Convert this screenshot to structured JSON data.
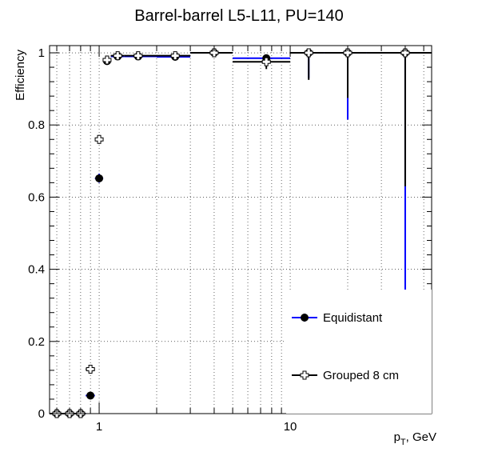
{
  "chart_data": {
    "type": "scatter",
    "title": "Barrel-barrel L5-L11, PU=140",
    "xlabel_main": "p",
    "xlabel_sub": "T",
    "xlabel_tail": ", GeV",
    "ylabel": "Efficiency",
    "x_scale": "log",
    "xlim": [
      0.55,
      55
    ],
    "ylim": [
      0,
      1.02
    ],
    "grid": true,
    "x_ticks": [
      {
        "value": 1,
        "label": "1"
      },
      {
        "value": 10,
        "label": "10"
      }
    ],
    "y_ticks": [
      {
        "value": 0,
        "label": "0"
      },
      {
        "value": 0.2,
        "label": "0.2"
      },
      {
        "value": 0.4,
        "label": "0.4"
      },
      {
        "value": 0.6,
        "label": "0.6"
      },
      {
        "value": 0.8,
        "label": "0.8"
      },
      {
        "value": 1.0,
        "label": "1"
      }
    ],
    "legend_position": "bottom-right",
    "series": [
      {
        "name": "Equidistant",
        "color": "#0000ff",
        "marker": "filled-circle",
        "points": [
          {
            "x": 0.6,
            "xlo": 0.55,
            "xhi": 0.65,
            "y": 0.0,
            "ylo": 0.0,
            "yhi": 0.0
          },
          {
            "x": 0.7,
            "xlo": 0.65,
            "xhi": 0.75,
            "y": 0.0,
            "ylo": 0.0,
            "yhi": 0.0
          },
          {
            "x": 0.8,
            "xlo": 0.75,
            "xhi": 0.85,
            "y": 0.0,
            "ylo": 0.0,
            "yhi": 0.0
          },
          {
            "x": 0.9,
            "xlo": 0.85,
            "xhi": 0.95,
            "y": 0.05,
            "ylo": 0.045,
            "yhi": 0.055
          },
          {
            "x": 1.0,
            "xlo": 0.95,
            "xhi": 1.05,
            "y": 0.652,
            "ylo": 0.64,
            "yhi": 0.665
          },
          {
            "x": 1.1,
            "xlo": 1.05,
            "xhi": 1.15,
            "y": 0.977,
            "ylo": 0.972,
            "yhi": 0.982
          },
          {
            "x": 1.25,
            "xlo": 1.15,
            "xhi": 1.35,
            "y": 0.99,
            "ylo": 0.987,
            "yhi": 0.993
          },
          {
            "x": 1.6,
            "xlo": 1.35,
            "xhi": 2.0,
            "y": 0.99,
            "ylo": 0.988,
            "yhi": 0.992
          },
          {
            "x": 2.5,
            "xlo": 2.0,
            "xhi": 3.0,
            "y": 0.989,
            "ylo": 0.983,
            "yhi": 0.994
          },
          {
            "x": 4.0,
            "xlo": 3.0,
            "xhi": 5.0,
            "y": 1.0,
            "ylo": 0.997,
            "yhi": 1.0
          },
          {
            "x": 7.5,
            "xlo": 5.0,
            "xhi": 10.0,
            "y": 0.985,
            "ylo": 0.975,
            "yhi": 0.993
          },
          {
            "x": 12.5,
            "xlo": 10.0,
            "xhi": 15.0,
            "y": 1.0,
            "ylo": 0.93,
            "yhi": 1.0
          },
          {
            "x": 20.0,
            "xlo": 15.0,
            "xhi": 25.0,
            "y": 1.0,
            "ylo": 0.815,
            "yhi": 1.0
          },
          {
            "x": 40.0,
            "xlo": 25.0,
            "xhi": 55.0,
            "y": 1.0,
            "ylo": 0.34,
            "yhi": 1.0
          }
        ]
      },
      {
        "name": "Grouped 8 cm",
        "color": "#000000",
        "marker": "open-cross",
        "points": [
          {
            "x": 0.6,
            "xlo": 0.55,
            "xhi": 0.65,
            "y": 0.0,
            "ylo": 0.0,
            "yhi": 0.0
          },
          {
            "x": 0.7,
            "xlo": 0.65,
            "xhi": 0.75,
            "y": 0.0,
            "ylo": 0.0,
            "yhi": 0.0
          },
          {
            "x": 0.8,
            "xlo": 0.75,
            "xhi": 0.85,
            "y": 0.0,
            "ylo": 0.0,
            "yhi": 0.0
          },
          {
            "x": 0.9,
            "xlo": 0.85,
            "xhi": 0.95,
            "y": 0.123,
            "ylo": 0.117,
            "yhi": 0.129
          },
          {
            "x": 1.0,
            "xlo": 0.95,
            "xhi": 1.05,
            "y": 0.76,
            "ylo": 0.748,
            "yhi": 0.772
          },
          {
            "x": 1.1,
            "xlo": 1.05,
            "xhi": 1.15,
            "y": 0.98,
            "ylo": 0.975,
            "yhi": 0.985
          },
          {
            "x": 1.25,
            "xlo": 1.15,
            "xhi": 1.35,
            "y": 0.992,
            "ylo": 0.989,
            "yhi": 0.995
          },
          {
            "x": 1.6,
            "xlo": 1.35,
            "xhi": 2.0,
            "y": 0.992,
            "ylo": 0.99,
            "yhi": 0.994
          },
          {
            "x": 2.5,
            "xlo": 2.0,
            "xhi": 3.0,
            "y": 0.992,
            "ylo": 0.987,
            "yhi": 0.996
          },
          {
            "x": 4.0,
            "xlo": 3.0,
            "xhi": 5.0,
            "y": 1.0,
            "ylo": 0.997,
            "yhi": 1.0
          },
          {
            "x": 7.5,
            "xlo": 5.0,
            "xhi": 10.0,
            "y": 0.975,
            "ylo": 0.955,
            "yhi": 0.99
          },
          {
            "x": 12.5,
            "xlo": 10.0,
            "xhi": 15.0,
            "y": 1.0,
            "ylo": 0.925,
            "yhi": 1.0
          },
          {
            "x": 20.0,
            "xlo": 15.0,
            "xhi": 25.0,
            "y": 1.0,
            "ylo": 0.875,
            "yhi": 1.0
          },
          {
            "x": 40.0,
            "xlo": 25.0,
            "xhi": 55.0,
            "y": 1.0,
            "ylo": 0.63,
            "yhi": 1.0
          }
        ]
      }
    ]
  }
}
